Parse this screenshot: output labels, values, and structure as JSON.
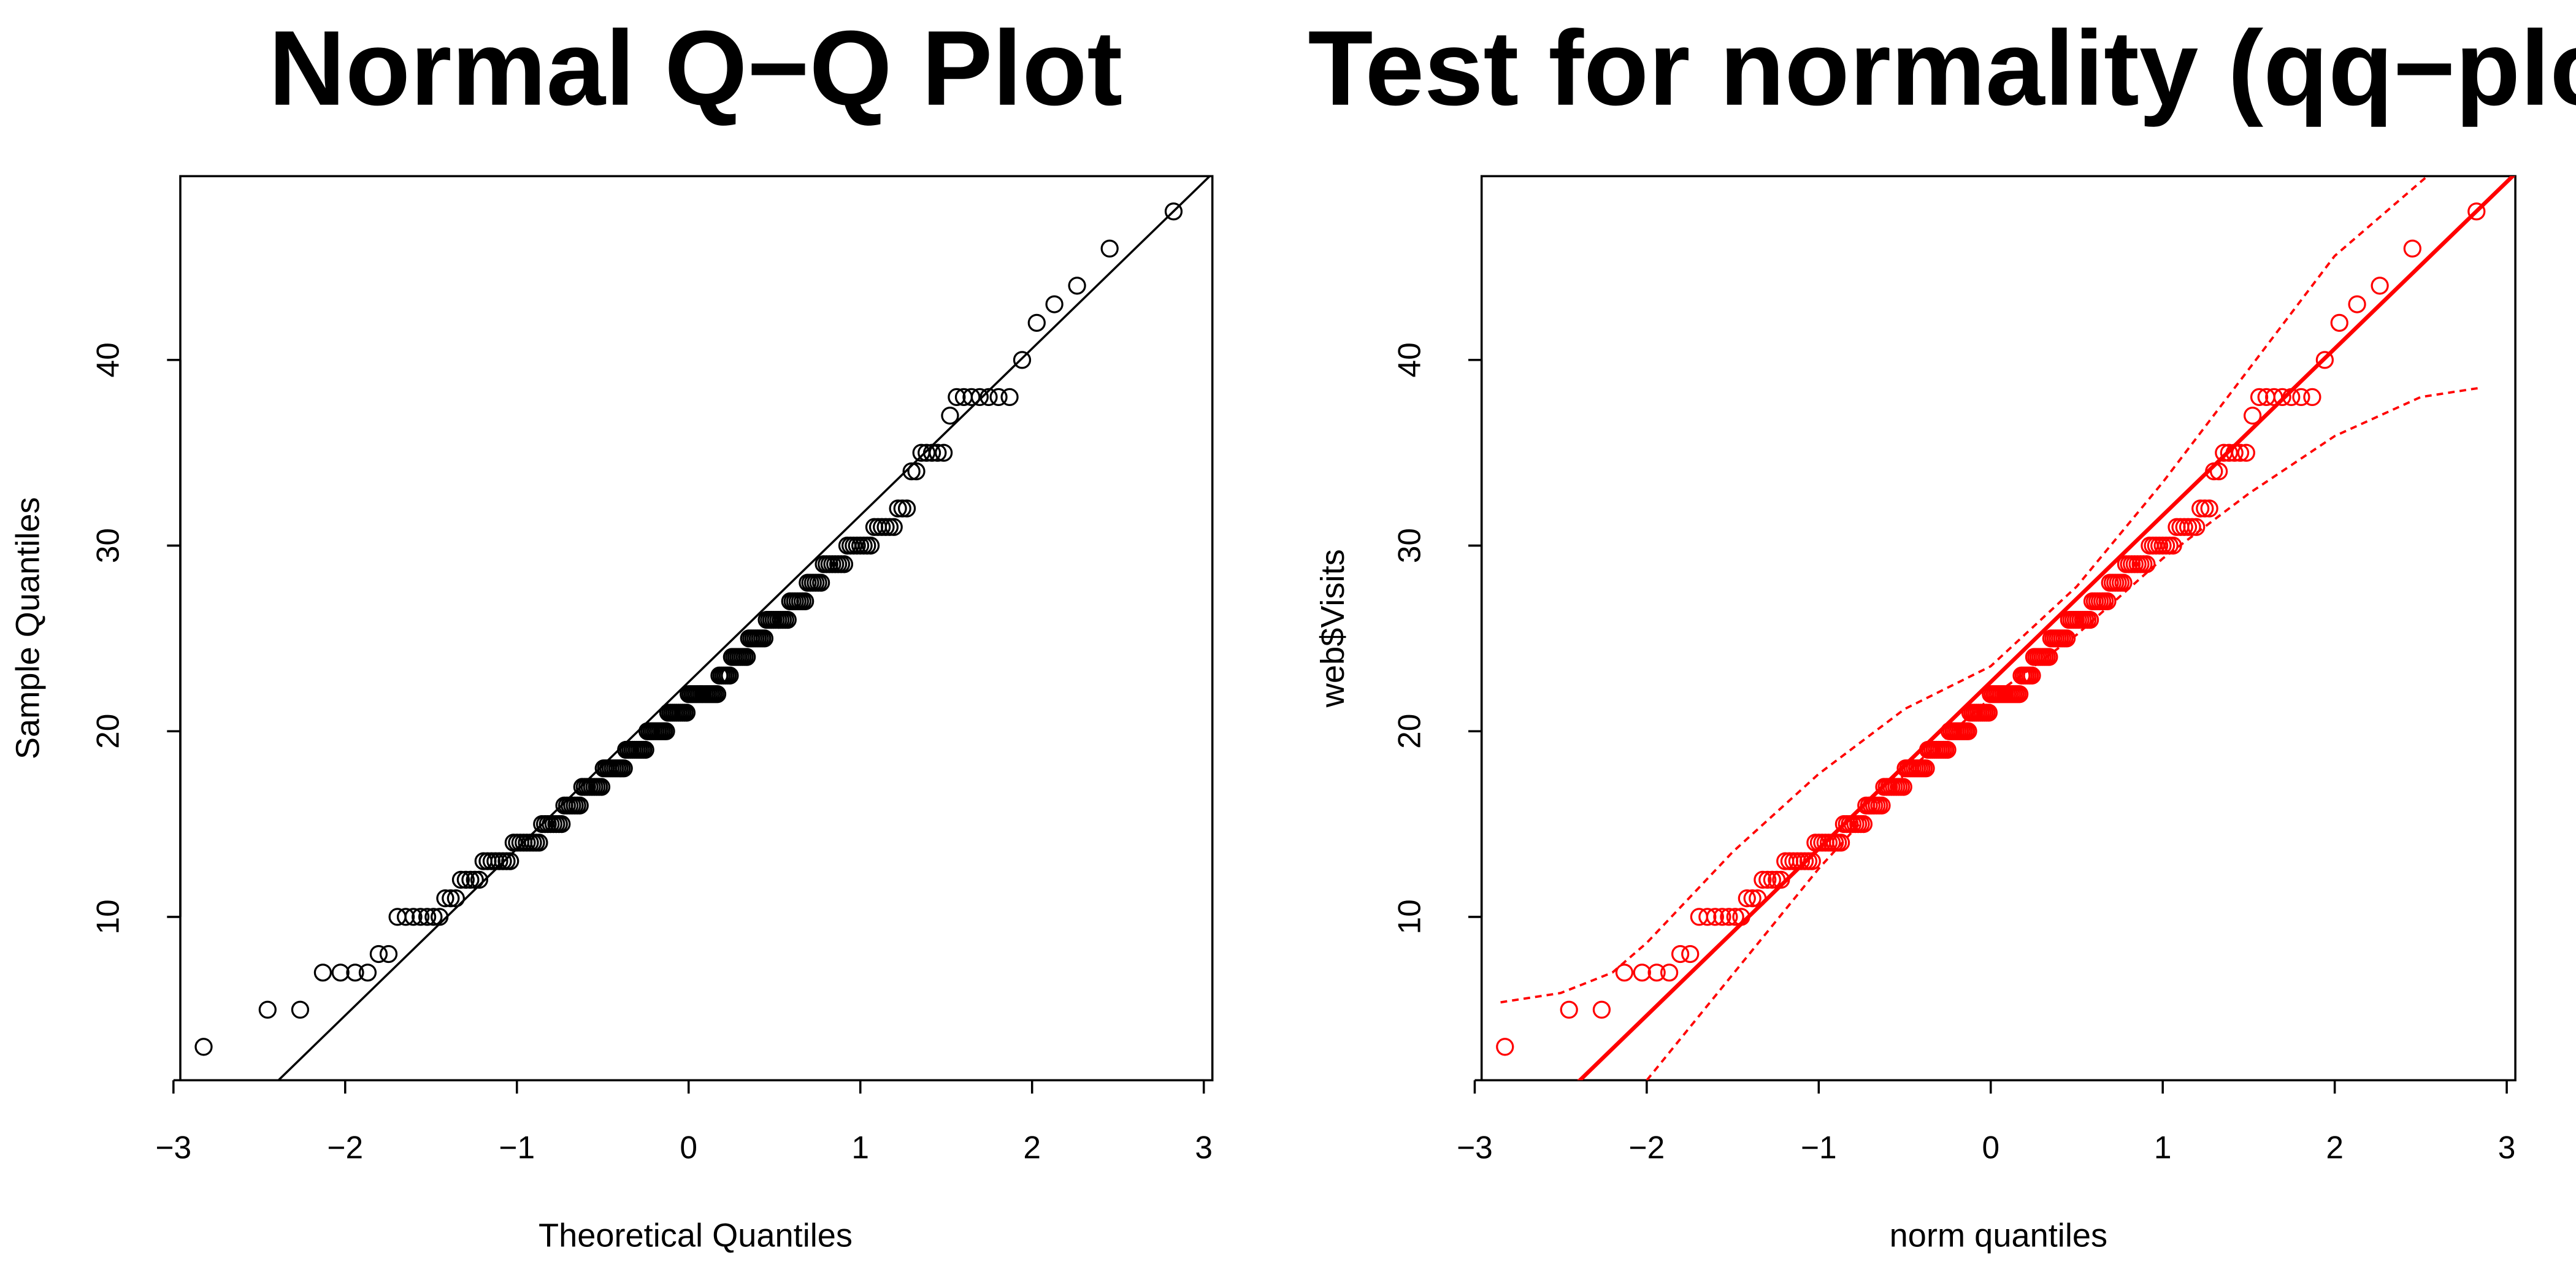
{
  "chart_data": [
    {
      "type": "scatter",
      "title": "Normal Q−Q Plot",
      "xlabel": "Theoretical Quantiles",
      "ylabel": "Sample Quantiles",
      "xlim": [
        -2.96,
        3.05
      ],
      "ylim": [
        1.2,
        49.9
      ],
      "xticks": [
        -3,
        -2,
        -1,
        0,
        1,
        2,
        3
      ],
      "xtick_labels": [
        "−3",
        "−2",
        "−1",
        "0",
        "1",
        "2",
        "3"
      ],
      "yticks": [
        10,
        20,
        30,
        40
      ],
      "ytick_labels": [
        "10",
        "20",
        "30",
        "40"
      ],
      "grid": false,
      "color": "#000000",
      "sample_values": [
        3,
        5,
        5,
        7,
        7,
        7,
        7,
        8,
        8,
        10,
        10,
        10,
        10,
        10,
        10,
        10,
        11,
        11,
        11,
        12,
        12,
        12,
        12,
        12,
        13,
        13,
        13,
        13,
        13,
        13,
        13,
        13,
        14,
        14,
        14,
        14,
        14,
        14,
        14,
        14,
        14,
        15,
        15,
        15,
        15,
        15,
        15,
        15,
        15,
        16,
        16,
        16,
        16,
        16,
        16,
        16,
        17,
        17,
        17,
        17,
        17,
        17,
        17,
        17,
        17,
        18,
        18,
        18,
        18,
        18,
        18,
        18,
        18,
        18,
        18,
        19,
        19,
        19,
        19,
        19,
        19,
        19,
        19,
        19,
        19,
        20,
        20,
        20,
        20,
        20,
        20,
        20,
        20,
        20,
        20,
        21,
        21,
        21,
        21,
        21,
        21,
        21,
        21,
        21,
        21,
        22,
        22,
        22,
        22,
        22,
        22,
        22,
        22,
        22,
        22,
        22,
        22,
        22,
        22,
        22,
        23,
        23,
        23,
        23,
        23,
        23,
        24,
        24,
        24,
        24,
        24,
        24,
        24,
        24,
        25,
        25,
        25,
        25,
        25,
        25,
        25,
        25,
        26,
        26,
        26,
        26,
        26,
        26,
        26,
        26,
        26,
        26,
        27,
        27,
        27,
        27,
        27,
        27,
        27,
        28,
        28,
        28,
        28,
        28,
        28,
        29,
        29,
        29,
        29,
        29,
        29,
        29,
        29,
        30,
        30,
        30,
        30,
        30,
        30,
        30,
        30,
        31,
        31,
        31,
        31,
        31,
        31,
        32,
        32,
        32,
        34,
        34,
        35,
        35,
        35,
        35,
        35,
        37,
        38,
        38,
        38,
        38,
        38,
        38,
        38,
        40,
        42,
        43,
        44,
        46,
        48
      ],
      "reference_line": {
        "slope": 8.98,
        "intercept": 22.65
      }
    },
    {
      "type": "scatter",
      "title": "Test for normality (qq−plot)",
      "xlabel": "norm quantiles",
      "ylabel": "web$Visits",
      "xlim": [
        -2.96,
        3.05
      ],
      "ylim": [
        1.2,
        49.9
      ],
      "xticks": [
        -3,
        -2,
        -1,
        0,
        1,
        2,
        3
      ],
      "xtick_labels": [
        "−3",
        "−2",
        "−1",
        "0",
        "1",
        "2",
        "3"
      ],
      "yticks": [
        10,
        20,
        30,
        40
      ],
      "ytick_labels": [
        "10",
        "20",
        "30",
        "40"
      ],
      "grid": false,
      "color": "#ff0000",
      "reference_line": {
        "slope": 8.98,
        "intercept": 22.65
      },
      "envelope_upper": [
        [
          -2.85,
          5.4
        ],
        [
          -2.5,
          5.9
        ],
        [
          -2.2,
          7.0
        ],
        [
          -2.0,
          8.6
        ],
        [
          -1.5,
          13.5
        ],
        [
          -1.0,
          17.7
        ],
        [
          -0.5,
          21.2
        ],
        [
          0,
          23.5
        ],
        [
          0.5,
          27.8
        ],
        [
          1.0,
          33.4
        ],
        [
          1.5,
          39.5
        ],
        [
          2.0,
          45.6
        ],
        [
          2.55,
          50
        ]
      ],
      "envelope_lower": [
        [
          -2.0,
          1.2
        ],
        [
          -1.5,
          6.9
        ],
        [
          -1.0,
          12.6
        ],
        [
          -0.5,
          17.7
        ],
        [
          0,
          21.8
        ],
        [
          0.5,
          25.2
        ],
        [
          1.0,
          29.3
        ],
        [
          1.5,
          32.8
        ],
        [
          2.0,
          35.9
        ],
        [
          2.5,
          38.0
        ],
        [
          2.85,
          38.5
        ]
      ]
    }
  ]
}
